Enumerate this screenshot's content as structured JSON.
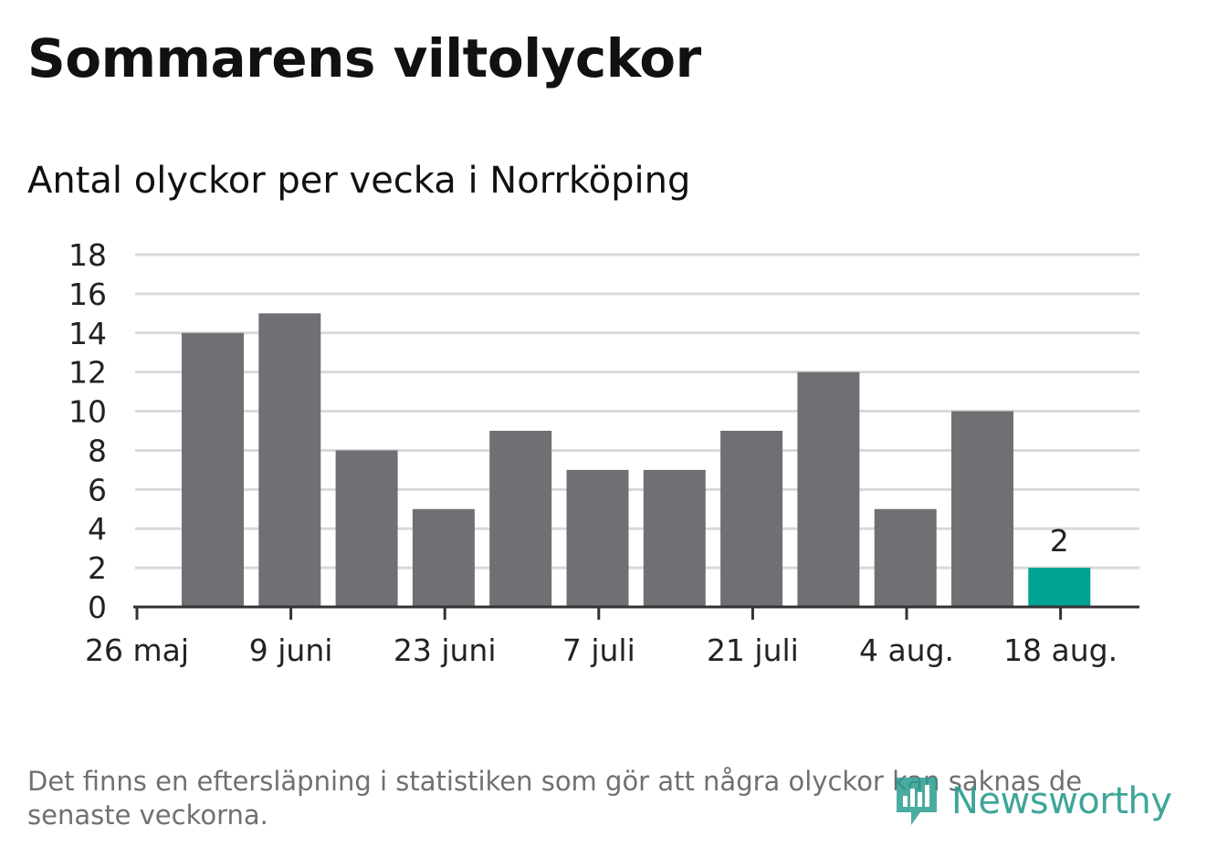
{
  "header": {
    "title": "Sommarens viltolyckor",
    "subtitle": "Antal olyckor per vecka i Norrköping"
  },
  "footer": {
    "note": "Det finns en eftersläpning i statistiken som gör att några olyckor kan saknas de senaste veckorna.",
    "brand": "Newsworthy",
    "brand_icon": "newsworthy-logo-icon"
  },
  "colors": {
    "bar": "#706f74",
    "highlight": "#00a294",
    "grid": "#d9d9d9",
    "axis": "#333333",
    "text": "#222222"
  },
  "chart_data": {
    "type": "bar",
    "title": "Sommarens viltolyckor",
    "subtitle": "Antal olyckor per vecka i Norrköping",
    "xlabel": "",
    "ylabel": "",
    "ylim": [
      0,
      18
    ],
    "yticks": [
      0,
      2,
      4,
      6,
      8,
      10,
      12,
      14,
      16,
      18
    ],
    "grid": true,
    "legend": "none",
    "x_tick_labels": [
      "26 maj",
      "9 juni",
      "23 juni",
      "7 juli",
      "21 juli",
      "4 aug.",
      "18 aug."
    ],
    "values": [
      14,
      15,
      8,
      5,
      9,
      7,
      7,
      9,
      12,
      5,
      10,
      2
    ],
    "highlight_index": 11,
    "data_labels": [
      {
        "index": 11,
        "text": "2"
      }
    ]
  }
}
